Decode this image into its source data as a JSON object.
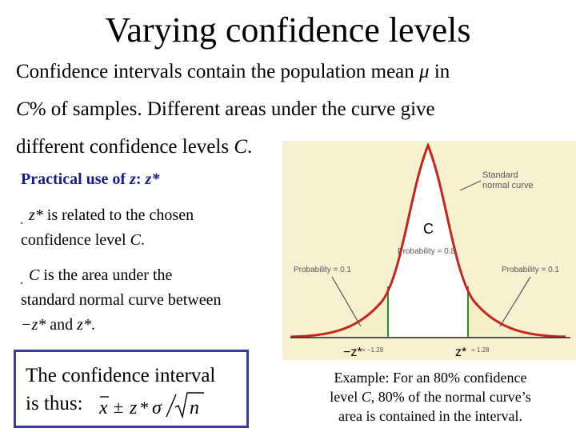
{
  "title": "Varying confidence levels",
  "intro": {
    "line1": "Confidence intervals contain the population mean",
    "mu": "μ",
    "line1_end": "in",
    "line2_var": "C",
    "line2": "% of samples. Different areas under the curve give",
    "line3": "different confidence levels",
    "line3_var": "C",
    "line3_end": "."
  },
  "practical": {
    "heading": "Practical use of",
    "z": "z",
    "colon": ":",
    "zstar": "z*"
  },
  "bullets": [
    {
      "var": "z*",
      "text1": " is related to the chosen",
      "text2": "confidence level ",
      "var2": "C",
      "end": "."
    },
    {
      "var": "C",
      "text1": " is the area under the",
      "text2": "standard normal curve between",
      "line3_a": "−z*",
      "line3_b": " and ",
      "line3_c": "z*",
      "line3_end": "."
    }
  ],
  "box": {
    "line1": "The confidence interval",
    "line2": "is thus:",
    "formula": {
      "xbar": "x",
      "pm": "±",
      "z": "z",
      "star": "*",
      "sigma": "σ",
      "n": "n"
    }
  },
  "figure": {
    "label_curve": [
      "Standard",
      "normal curve"
    ],
    "label_c": "C",
    "label_prob_center": "Probability = 0.8",
    "label_prob_left": "Probability = 0.1",
    "label_prob_right": "Probability = 0.1",
    "label_neg_z": "−z*",
    "label_neg_z_value": "= −1.28",
    "label_pos_z": "z*",
    "label_pos_z_value": "= 1.28",
    "colors": {
      "background": "#f7f1cf",
      "center_fill": "#ffffff",
      "curve": "#c8231c",
      "tails": "#f5efc8"
    }
  },
  "caption": {
    "line1": "Example: For an 80% confidence",
    "line2a": "level ",
    "line2_var": "C",
    "line2b": ", 80% of the normal curve’s",
    "line3": "area is contained in the interval."
  }
}
